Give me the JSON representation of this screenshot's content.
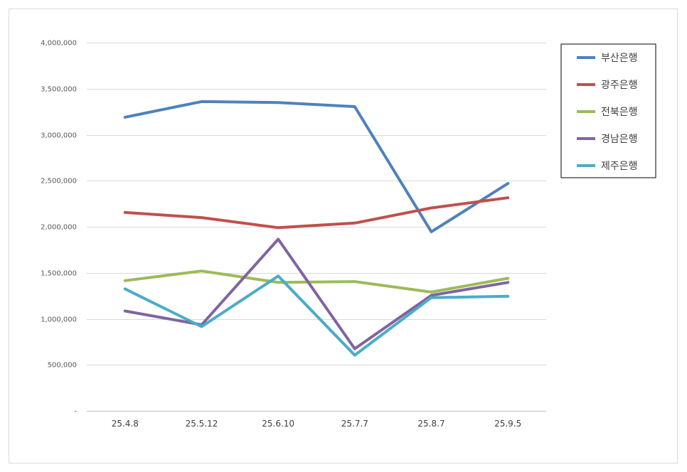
{
  "chart_data": {
    "type": "line",
    "categories": [
      "25.4.8",
      "25.5.12",
      "25.6.10",
      "25.7.7",
      "25.8.7",
      "25.9.5"
    ],
    "ylim": [
      0,
      4000000
    ],
    "yticks": [
      {
        "value": 0,
        "label": "-"
      },
      {
        "value": 500000,
        "label": "500,000"
      },
      {
        "value": 1000000,
        "label": "1,000,000"
      },
      {
        "value": 1500000,
        "label": "1,500,000"
      },
      {
        "value": 2000000,
        "label": "2,000,000"
      },
      {
        "value": 2500000,
        "label": "2,500,000"
      },
      {
        "value": 3000000,
        "label": "3,000,000"
      },
      {
        "value": 3500000,
        "label": "3,500,000"
      },
      {
        "value": 4000000,
        "label": "4,000,000"
      }
    ],
    "grid": true,
    "legend": "right",
    "series": [
      {
        "name": "부산은행",
        "color": "#4f81bd",
        "values": [
          3190000,
          3360000,
          3350000,
          3305000,
          1945000,
          2470000
        ]
      },
      {
        "name": "광주은행",
        "color": "#c0504d",
        "values": [
          2155000,
          2100000,
          1990000,
          2040000,
          2205000,
          2315000
        ]
      },
      {
        "name": "전북은행",
        "color": "#9bbb59",
        "values": [
          1415000,
          1520000,
          1395000,
          1405000,
          1290000,
          1440000
        ]
      },
      {
        "name": "경남은행",
        "color": "#8064a2",
        "values": [
          1085000,
          935000,
          1865000,
          675000,
          1255000,
          1395000
        ]
      },
      {
        "name": "제주은행",
        "color": "#4bacc6",
        "values": [
          1325000,
          915000,
          1465000,
          605000,
          1230000,
          1245000
        ]
      }
    ]
  }
}
